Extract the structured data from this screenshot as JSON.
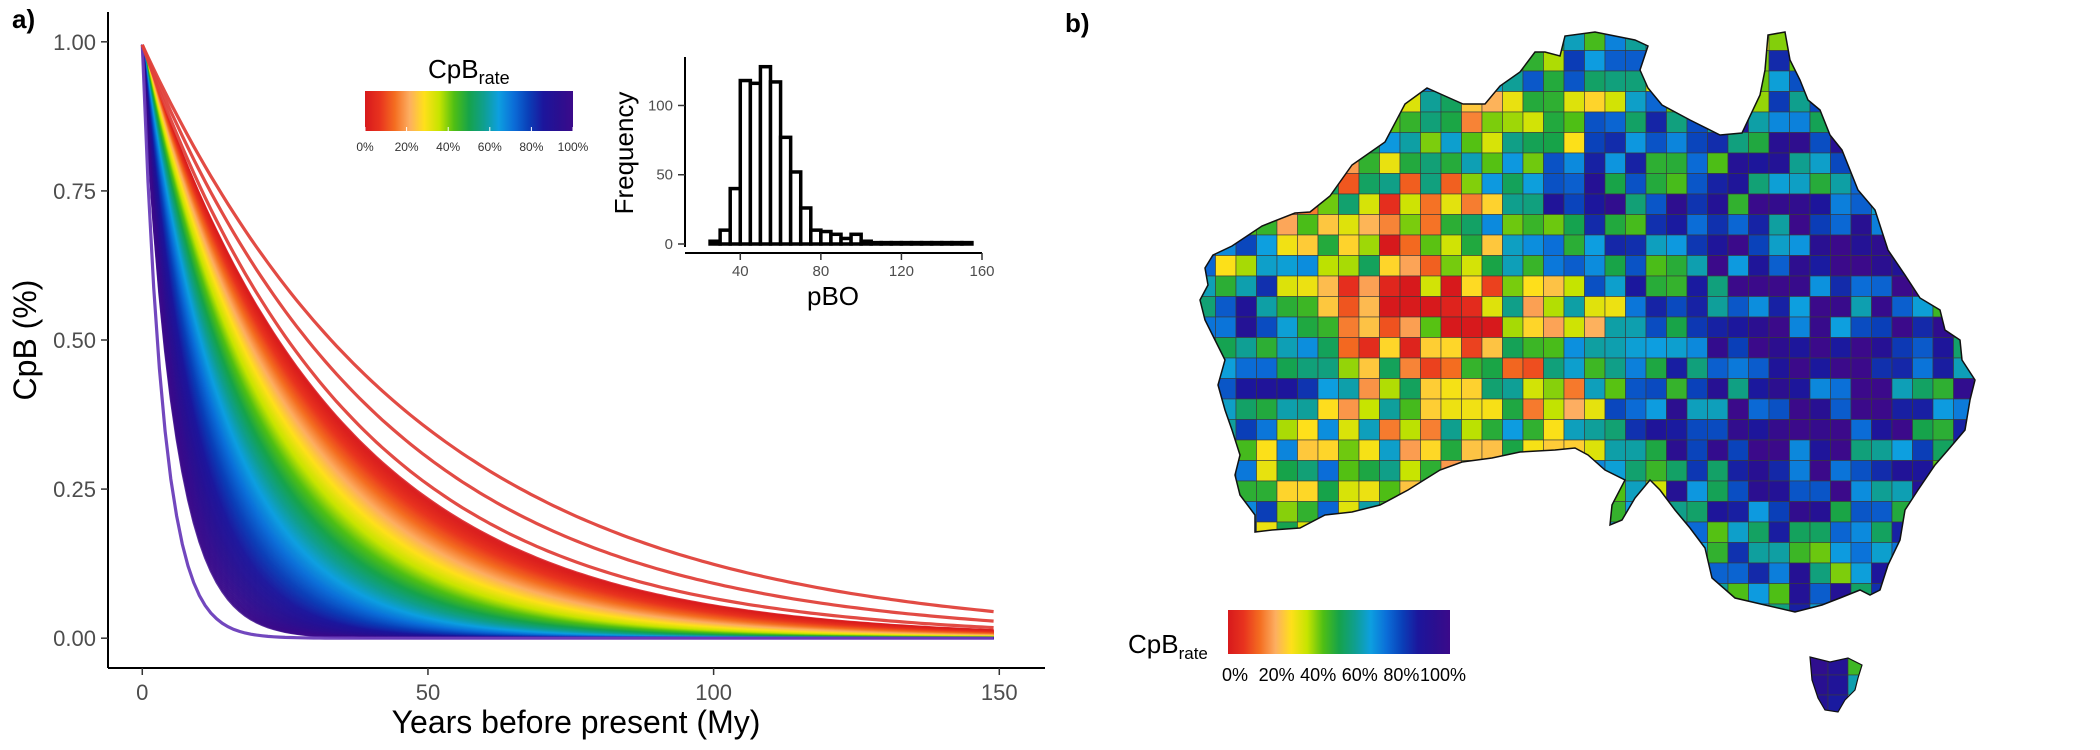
{
  "panels": {
    "a": {
      "label": "a)"
    },
    "b": {
      "label": "b)"
    }
  },
  "colors": {
    "rate_scale": [
      "#d7191c",
      "#e8331e",
      "#f46d20",
      "#fdae61",
      "#fee01a",
      "#c6e400",
      "#4fbf14",
      "#16a34a",
      "#0f9f8f",
      "#0d9fe0",
      "#0b6ed8",
      "#0a3fb8",
      "#1c169c",
      "#2a0f90",
      "#3b0a8a"
    ],
    "curve_outlier": "#6a3dbb",
    "axis": "#000000"
  },
  "chart_data": [
    {
      "type": "line",
      "panel": "a",
      "title": "",
      "xlabel": "Years before present (My)",
      "ylabel": "CpB (%)",
      "xlim": [
        -6,
        158
      ],
      "ylim": [
        -0.05,
        1.05
      ],
      "x_ticks": [
        0,
        50,
        100,
        150
      ],
      "y_ticks": [
        0.0,
        0.25,
        0.5,
        0.75,
        1.0
      ],
      "y_tick_labels": [
        "0.00",
        "0.25",
        "0.50",
        "0.75",
        "1.00"
      ],
      "x_tick_labels": [
        "0",
        "50",
        "100",
        "150"
      ],
      "x_range_data": [
        0,
        149
      ],
      "curve_description": "exponential decay curves CpB(t) = exp(-t / tau), coloured by CpB_rate",
      "tau_range": [
        5.5,
        48
      ],
      "outlier_taus": [
        3.8,
        37,
        42,
        48
      ],
      "n_curves": 260,
      "grid": false,
      "legend": {
        "title_main": "CpB",
        "title_sub": "rate",
        "position": "top-center",
        "ticks": [
          "0%",
          "20%",
          "40%",
          "60%",
          "80%",
          "100%"
        ]
      }
    },
    {
      "type": "bar",
      "panel": "a-inset",
      "title": "",
      "xlabel": "pBO",
      "ylabel": "Frequency",
      "x_ticks": [
        40,
        80,
        120,
        160
      ],
      "x_tick_labels": [
        "40",
        "80",
        "120",
        "160"
      ],
      "y_ticks": [
        0,
        50,
        100
      ],
      "y_tick_labels": [
        "0",
        "50",
        "100"
      ],
      "xlim": [
        20,
        160
      ],
      "ylim": [
        0,
        135
      ],
      "bin_width": 5,
      "bins_start": [
        25,
        30,
        35,
        40,
        45,
        50,
        55,
        60,
        65,
        70,
        75,
        80,
        85,
        90,
        95,
        100,
        105,
        110,
        115,
        120,
        125,
        130,
        135,
        140,
        145,
        150
      ],
      "values": [
        2,
        10,
        40,
        118,
        116,
        128,
        117,
        77,
        52,
        26,
        10,
        9,
        7,
        4,
        7,
        2,
        1,
        1,
        1,
        1,
        1,
        1,
        1,
        1,
        1,
        1
      ]
    },
    {
      "type": "heatmap",
      "panel": "b",
      "title": "",
      "description": "Map of Australia on a grid, cells coloured by CpB_rate",
      "legend": {
        "title_main": "CpB",
        "title_sub": "rate",
        "position": "bottom-left",
        "ticks": [
          "0%",
          "20%",
          "40%",
          "60%",
          "80%",
          "100%"
        ]
      }
    }
  ]
}
